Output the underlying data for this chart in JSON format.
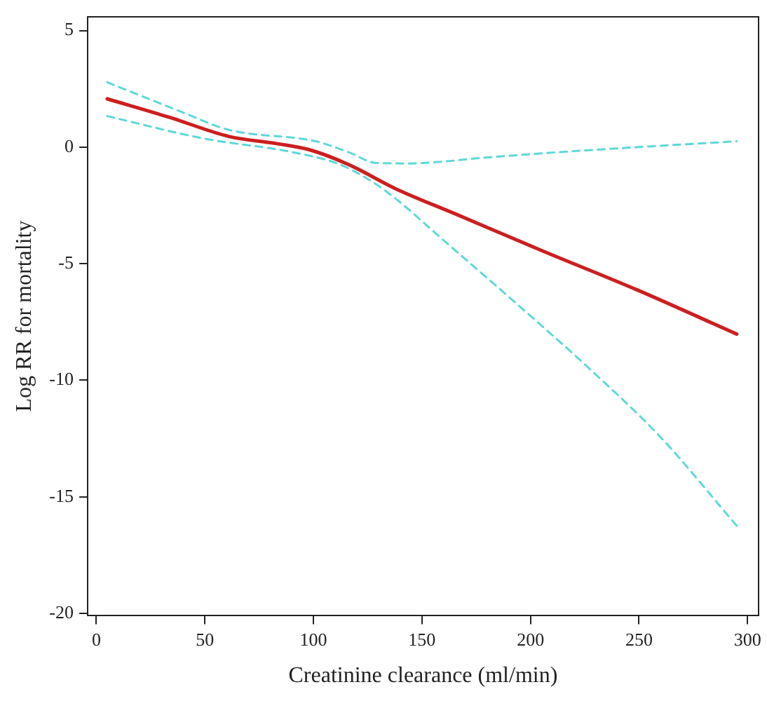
{
  "chart_data": {
    "type": "line",
    "xlabel": "Creatinine clearance (ml/min)",
    "ylabel": "Log RR for mortality",
    "xlim": [
      -4,
      305
    ],
    "ylim": [
      -20.1,
      5.6
    ],
    "xticks": [
      0,
      50,
      100,
      150,
      200,
      250,
      300
    ],
    "yticks": [
      -20,
      -15,
      -10,
      -5,
      0,
      5
    ],
    "grid": false,
    "legend": false,
    "marker": "none",
    "series": [
      {
        "color": "#cc1f1f",
        "line_style": "solid",
        "x": [
          5,
          34,
          61,
          83,
          98,
          116,
          138,
          165,
          205,
          249,
          295
        ],
        "values": [
          2.07,
          1.27,
          0.46,
          0.15,
          -0.11,
          -0.74,
          -1.79,
          -2.85,
          -4.43,
          -6.12,
          -8.02
        ]
      },
      {
        "color": "#5ed8d8",
        "line_style": "dashed",
        "x": [
          5,
          39,
          61,
          101,
          116,
          129,
          143,
          183,
          227,
          295
        ],
        "values": [
          2.78,
          1.52,
          0.74,
          0.25,
          -0.21,
          -0.68,
          -0.7,
          -0.42,
          -0.13,
          0.25
        ]
      },
      {
        "color": "#5ed8d8",
        "line_style": "dashed",
        "x": [
          5,
          50,
          90,
          112,
          127,
          138,
          160,
          194,
          227,
          260,
          295
        ],
        "values": [
          1.33,
          0.36,
          -0.21,
          -0.74,
          -1.48,
          -2.22,
          -4.0,
          -6.75,
          -9.49,
          -12.45,
          -16.24
        ]
      }
    ]
  }
}
